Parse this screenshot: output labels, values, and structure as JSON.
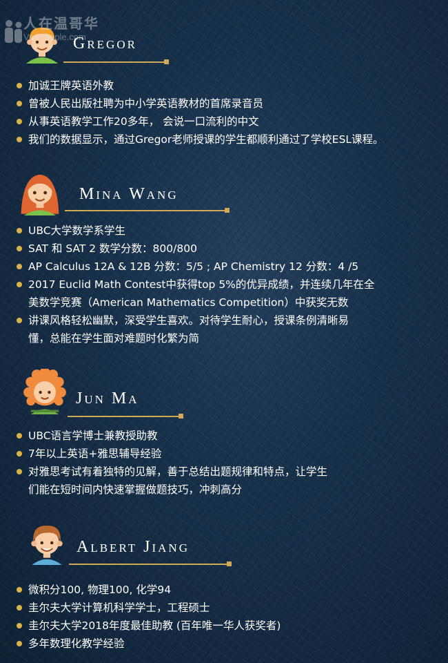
{
  "watermark": {
    "cn": "人在温哥华",
    "en": "VanPeople.com"
  },
  "colors": {
    "accent": "#d1aa57",
    "bullet": "#d9b24a",
    "background": "#173049"
  },
  "teachers": [
    {
      "name": "Gregor",
      "items": [
        "加诚王牌英语外教",
        "曾被人民出版社聘为中小学英语教材的首席录音员",
        "从事英语教学工作20多年， 会说一口流利的中文",
        "我们的数据显示，通过Gregor老师授课的学生都顺利通过了学校ESL课程。"
      ]
    },
    {
      "name": "Mina Wang",
      "items": [
        "UBC大学数学系学生",
        "SAT 和 SAT 2 数学分数：800/800",
        "AP Calculus 12A & 12B 分数：5/5 ;   AP Chemistry 12 分数：4 /5",
        "2017 Euclid Math Contest中获得top 5%的优异成绩，并连续几年在全\n美数学竞赛（American Mathematics Competition）中获奖无数",
        "讲课风格轻松幽默，深受学生喜欢。对待学生耐心，授课条例清晰易\n懂，总能在学生面对难题时化繁为简"
      ]
    },
    {
      "name": "Jun Ma",
      "items": [
        "UBC语言学博士兼教授助教",
        "7年以上英语+雅思辅导经验",
        "对雅思考试有着独特的见解，善于总结出题规律和特点，让学生\n们能在短时间内快速掌握做题技巧，冲刺高分"
      ]
    },
    {
      "name": "Albert Jiang",
      "items": [
        "微积分100, 物理100, 化学94",
        "圭尔夫大学计算机科学学士，工程硕士",
        "圭尔夫大学2018年度最佳助教 (百年唯一华人获奖者)",
        "多年数理化教学经验"
      ]
    }
  ]
}
